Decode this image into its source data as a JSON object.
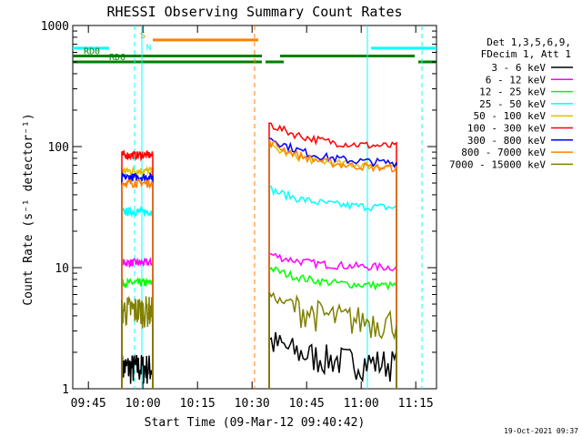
{
  "chart_data": {
    "type": "line",
    "title": "RHESSI Observing Summary Count Rates",
    "xlabel": "Start Time (09-Mar-12 09:40:42)",
    "ylabel": "Count Rate (s⁻¹ detector⁻¹)",
    "yscale": "log",
    "ylim": [
      1,
      1000
    ],
    "xlim_minutes": [
      0,
      100
    ],
    "x_ticks": [
      {
        "label": "09:45",
        "t": 4.3
      },
      {
        "label": "10:00",
        "t": 19.3
      },
      {
        "label": "10:15",
        "t": 34.3
      },
      {
        "label": "10:30",
        "t": 49.3
      },
      {
        "label": "10:45",
        "t": 64.3
      },
      {
        "label": "11:00",
        "t": 79.3
      },
      {
        "label": "11:15",
        "t": 94.3
      }
    ],
    "y_ticks": [
      {
        "label": "1",
        "v": 1
      },
      {
        "label": "10",
        "v": 10
      },
      {
        "label": "100",
        "v": 100
      },
      {
        "label": "1000",
        "v": 1000
      }
    ],
    "legend": {
      "header": [
        "Det 1,3,5,6,9,",
        "FDecim 1, Att 1"
      ],
      "position": "top-right"
    },
    "series": [
      {
        "name": "3 - 6 keV",
        "color": "#000000",
        "seg1": [
          1.5,
          1.5
        ],
        "seg2": [
          2.5,
          1.6
        ]
      },
      {
        "name": "6 - 12 keV",
        "color": "#ff00ff",
        "seg1": [
          11,
          11
        ],
        "seg2": [
          13,
          10
        ]
      },
      {
        "name": "12 - 25 keV",
        "color": "#00ff00",
        "seg1": [
          7.5,
          7.5
        ],
        "seg2": [
          10,
          7
        ]
      },
      {
        "name": "25 - 50 keV",
        "color": "#00ffff",
        "seg1": [
          29,
          29
        ],
        "seg2": [
          45,
          31
        ]
      },
      {
        "name": "50 - 100 keV",
        "color": "#e0c000",
        "seg1": [
          63,
          63
        ],
        "seg2": [
          100,
          68
        ]
      },
      {
        "name": "100 - 300 keV",
        "color": "#ff0000",
        "seg1": [
          85,
          87
        ],
        "seg2": [
          155,
          99
        ]
      },
      {
        "name": "300 - 800 keV",
        "color": "#0000ff",
        "seg1": [
          56,
          57
        ],
        "seg2": [
          120,
          72
        ]
      },
      {
        "name": "800 - 7000 keV",
        "color": "#ff8000",
        "seg1": [
          50,
          50
        ],
        "seg2": [
          110,
          65
        ]
      },
      {
        "name": "7000 - 15000 keV",
        "color": "#808000",
        "seg1": [
          4.5,
          4.5
        ],
        "seg2": [
          6,
          3.5
        ]
      }
    ],
    "segments_minutes": [
      [
        13.5,
        22
      ],
      [
        54,
        89
      ]
    ],
    "status_bars": [
      {
        "label": "",
        "color": "#00ffff",
        "spans": [
          [
            0,
            10
          ],
          [
            82,
            100
          ]
        ],
        "value": 650
      },
      {
        "label": "S",
        "color": "#ff8000",
        "spans": [
          [
            22,
            51
          ]
        ],
        "value": 760
      },
      {
        "label": "RD0",
        "color": "#008000",
        "spans": [
          [
            0,
            52
          ],
          [
            57,
            94
          ]
        ],
        "value": 560
      },
      {
        "label": "RD6",
        "color": "#008000",
        "spans": [
          [
            0,
            52
          ],
          [
            53,
            58
          ],
          [
            95,
            100
          ]
        ],
        "value": 500
      }
    ],
    "status_letter_n": "N",
    "orbit_lines": [
      {
        "t": 17,
        "color": "#00ffff",
        "style": "dashed"
      },
      {
        "t": 50,
        "color": "#ff8000",
        "style": "dashed"
      },
      {
        "t": 96,
        "color": "#00ffff",
        "style": "dashed"
      }
    ],
    "orbit_lines_solid": [
      {
        "t": 19,
        "color": "#00ffff"
      },
      {
        "t": 81,
        "color": "#00ffff"
      }
    ]
  },
  "footer": {
    "timestamp": "19-Oct-2021 09:37"
  }
}
